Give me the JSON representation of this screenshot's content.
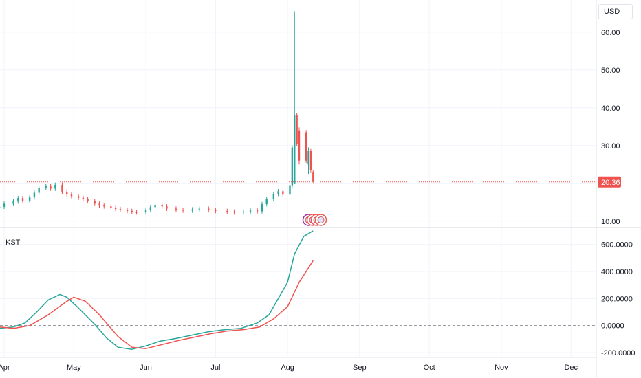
{
  "price_axis": {
    "currency": "USD",
    "last_price_label": "20.36",
    "last_price_color": "#ef5350"
  },
  "indicator": {
    "name": "KST"
  },
  "colors": {
    "up": "#26a69a",
    "down": "#ef5350",
    "kst_line": "#26a69a",
    "signal_line": "#ef5350",
    "grid": "#f0f3fa",
    "event_flag_border": "#ef5350",
    "event_flag_alt": "#9c27b0"
  },
  "chart_data": [
    {
      "type": "candlestick",
      "title": "",
      "y_ticks": [
        10,
        20,
        30,
        40,
        50,
        60
      ],
      "y_tick_labels": [
        "10.00",
        "",
        "30.00",
        "40.00",
        "50.00",
        "60.00"
      ],
      "ylim": [
        8.5,
        68.5
      ],
      "x_tick_labels": [
        "Apr",
        "May",
        "Jun",
        "Jul",
        "Aug",
        "Sep",
        "Oct",
        "Nov",
        "Dec"
      ],
      "x_tick_dates": [
        "2021-04-01",
        "2021-05-01",
        "2021-06-01",
        "2021-07-01",
        "2021-08-01",
        "2021-09-01",
        "2021-10-01",
        "2021-11-01",
        "2021-12-01"
      ],
      "last_price": 20.36,
      "close_series": [
        [
          "2021-03-30",
          13.8
        ],
        [
          "2021-04-01",
          14.6
        ],
        [
          "2021-04-05",
          15.2
        ],
        [
          "2021-04-07",
          16.1
        ],
        [
          "2021-04-09",
          15.4
        ],
        [
          "2021-04-12",
          16.3
        ],
        [
          "2021-04-14",
          17.5
        ],
        [
          "2021-04-16",
          18.8
        ],
        [
          "2021-04-19",
          19.2
        ],
        [
          "2021-04-21",
          18.6
        ],
        [
          "2021-04-23",
          19.6
        ],
        [
          "2021-04-26",
          17.8
        ],
        [
          "2021-04-28",
          17.1
        ],
        [
          "2021-04-30",
          16.6
        ],
        [
          "2021-05-03",
          16.2
        ],
        [
          "2021-05-05",
          15.8
        ],
        [
          "2021-05-07",
          15.3
        ],
        [
          "2021-05-10",
          14.6
        ],
        [
          "2021-05-12",
          14.1
        ],
        [
          "2021-05-14",
          13.9
        ],
        [
          "2021-05-17",
          13.5
        ],
        [
          "2021-05-19",
          13.2
        ],
        [
          "2021-05-21",
          13.0
        ],
        [
          "2021-05-24",
          12.7
        ],
        [
          "2021-05-26",
          12.4
        ],
        [
          "2021-05-28",
          12.3
        ],
        [
          "2021-06-01",
          12.9
        ],
        [
          "2021-06-03",
          13.7
        ],
        [
          "2021-06-05",
          14.3
        ],
        [
          "2021-06-08",
          13.9
        ],
        [
          "2021-06-10",
          13.3
        ],
        [
          "2021-06-14",
          13.0
        ],
        [
          "2021-06-17",
          12.8
        ],
        [
          "2021-06-21",
          13.1
        ],
        [
          "2021-06-24",
          13.3
        ],
        [
          "2021-06-28",
          12.9
        ],
        [
          "2021-07-01",
          12.7
        ],
        [
          "2021-07-06",
          12.5
        ],
        [
          "2021-07-09",
          12.3
        ],
        [
          "2021-07-13",
          12.5
        ],
        [
          "2021-07-16",
          12.8
        ],
        [
          "2021-07-19",
          12.6
        ],
        [
          "2021-07-21",
          14.5
        ],
        [
          "2021-07-23",
          15.8
        ],
        [
          "2021-07-26",
          17.2
        ],
        [
          "2021-07-28",
          17.9
        ],
        [
          "2021-07-30",
          17.0
        ],
        [
          "2021-08-02",
          19.5
        ],
        [
          "2021-08-03",
          29.5
        ],
        [
          "2021-08-04",
          38.0
        ],
        [
          "2021-08-05",
          30.5
        ],
        [
          "2021-08-06",
          33.5
        ],
        [
          "2021-08-09",
          26.0
        ],
        [
          "2021-08-10",
          28.5
        ],
        [
          "2021-08-11",
          23.5
        ],
        [
          "2021-08-12",
          20.36
        ]
      ],
      "highlighted_bars": [
        {
          "date": "2021-08-04",
          "open": 20.0,
          "high": 65.5,
          "low": 19.8,
          "close": 38.0
        },
        {
          "date": "2021-08-06",
          "open": 34.0,
          "high": 34.8,
          "low": 25.0,
          "close": 26.0
        },
        {
          "date": "2021-08-10",
          "open": 25.0,
          "high": 29.5,
          "low": 22.5,
          "close": 28.5
        },
        {
          "date": "2021-08-12",
          "open": 23.0,
          "high": 23.4,
          "low": 20.1,
          "close": 20.36
        }
      ]
    },
    {
      "type": "line",
      "title": "KST",
      "y_ticks": [
        -200,
        0,
        200,
        400,
        600
      ],
      "y_tick_labels": [
        "-200.0000",
        "0.0000",
        "200.0000",
        "400.0000",
        "600.0000"
      ],
      "ylim": [
        -230,
        720
      ],
      "zero_line": 0,
      "series": [
        {
          "name": "KST",
          "points": [
            [
              "2021-03-30",
              -20
            ],
            [
              "2021-04-05",
              -10
            ],
            [
              "2021-04-10",
              20
            ],
            [
              "2021-04-15",
              100
            ],
            [
              "2021-04-20",
              190
            ],
            [
              "2021-04-25",
              230
            ],
            [
              "2021-04-28",
              210
            ],
            [
              "2021-05-03",
              130
            ],
            [
              "2021-05-10",
              10
            ],
            [
              "2021-05-15",
              -90
            ],
            [
              "2021-05-20",
              -160
            ],
            [
              "2021-05-26",
              -175
            ],
            [
              "2021-06-01",
              -150
            ],
            [
              "2021-06-07",
              -115
            ],
            [
              "2021-06-14",
              -95
            ],
            [
              "2021-06-21",
              -70
            ],
            [
              "2021-06-28",
              -45
            ],
            [
              "2021-07-05",
              -30
            ],
            [
              "2021-07-12",
              -20
            ],
            [
              "2021-07-19",
              20
            ],
            [
              "2021-07-24",
              80
            ],
            [
              "2021-07-28",
              200
            ],
            [
              "2021-08-01",
              320
            ],
            [
              "2021-08-04",
              530
            ],
            [
              "2021-08-08",
              660
            ],
            [
              "2021-08-12",
              700
            ]
          ]
        },
        {
          "name": "",
          "points": [
            [
              "2021-03-30",
              -10
            ],
            [
              "2021-04-05",
              -20
            ],
            [
              "2021-04-12",
              0
            ],
            [
              "2021-04-20",
              80
            ],
            [
              "2021-04-28",
              180
            ],
            [
              "2021-05-01",
              210
            ],
            [
              "2021-05-06",
              180
            ],
            [
              "2021-05-12",
              80
            ],
            [
              "2021-05-20",
              -80
            ],
            [
              "2021-05-26",
              -160
            ],
            [
              "2021-06-01",
              -170
            ],
            [
              "2021-06-08",
              -140
            ],
            [
              "2021-06-15",
              -110
            ],
            [
              "2021-06-22",
              -85
            ],
            [
              "2021-06-29",
              -60
            ],
            [
              "2021-07-06",
              -40
            ],
            [
              "2021-07-13",
              -30
            ],
            [
              "2021-07-20",
              -10
            ],
            [
              "2021-07-26",
              50
            ],
            [
              "2021-08-01",
              140
            ],
            [
              "2021-08-06",
              320
            ],
            [
              "2021-08-12",
              480
            ]
          ]
        }
      ]
    }
  ]
}
